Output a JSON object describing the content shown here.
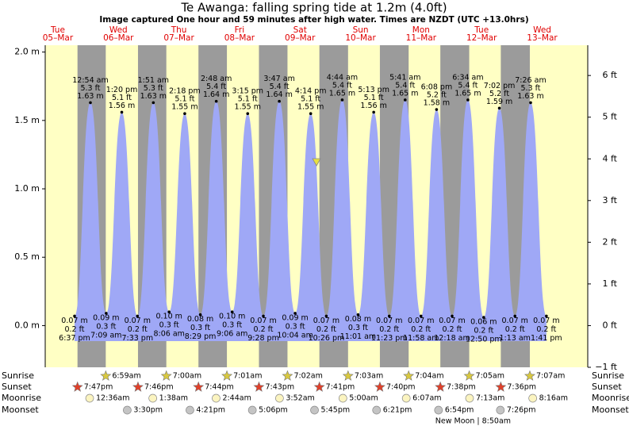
{
  "chart_data": {
    "type": "area",
    "title": "Te Awanga: falling  spring tide at 1.2m (4.0ft)",
    "subtitle": "Image captured One hour and 59 minutes after high water. Times are NZDT (UTC +13.0hrs)",
    "ylim": [
      -0.3048,
      2.05
    ],
    "yticks": [
      {
        "value": 0.0,
        "label": "0.0 m"
      },
      {
        "value": 0.5,
        "label": "0.5 m"
      },
      {
        "value": 1.0,
        "label": "1.0 m"
      },
      {
        "value": 1.5,
        "label": "1.5 m"
      },
      {
        "value": 2.0,
        "label": "2.0 m"
      }
    ],
    "y2lim": [
      -1,
      6.726
    ],
    "y2ticks": [
      {
        "value": -1,
        "label": "−1 ft"
      },
      {
        "value": 0,
        "label": "0 ft"
      },
      {
        "value": 1,
        "label": "1 ft"
      },
      {
        "value": 2,
        "label": "2 ft"
      },
      {
        "value": 3,
        "label": "3 ft"
      },
      {
        "value": 4,
        "label": "4 ft"
      },
      {
        "value": 5,
        "label": "5 ft"
      },
      {
        "value": 6,
        "label": "6 ft"
      }
    ],
    "color": "#9fa8f6",
    "rows": [
      "Sunrise",
      "Sunset",
      "Moonrise",
      "Moonset"
    ],
    "days": [
      {
        "weekday": "Tue",
        "date": "05–Mar",
        "sunset": "7:47pm",
        "tides": [
          {
            "time": "6:37 pm",
            "value": 0.07,
            "value_label": "0.07 m",
            "ft_label": "0.2 ft"
          }
        ]
      },
      {
        "weekday": "Wed",
        "date": "06–Mar",
        "sunrise": "6:59am",
        "sunset": "7:46pm",
        "moonrise": "12:36am",
        "moonset": "3:30pm",
        "tides": [
          {
            "time": "12:54 am",
            "value": 1.63,
            "value_label": "1.63 m",
            "ft_label": "5.3 ft"
          },
          {
            "time": "7:09 am",
            "value": 0.09,
            "value_label": "0.09 m",
            "ft_label": "0.3 ft"
          },
          {
            "time": "1:20 pm",
            "value": 1.56,
            "value_label": "1.56 m",
            "ft_label": "5.1 ft"
          },
          {
            "time": "7:33 pm",
            "value": 0.07,
            "value_label": "0.07 m",
            "ft_label": "0.2 ft"
          }
        ]
      },
      {
        "weekday": "Thu",
        "date": "07–Mar",
        "sunrise": "7:00am",
        "sunset": "7:44pm",
        "moonrise": "1:38am",
        "moonset": "4:21pm",
        "tides": [
          {
            "time": "1:51 am",
            "value": 1.63,
            "value_label": "1.63 m",
            "ft_label": "5.3 ft"
          },
          {
            "time": "8:06 am",
            "value": 0.1,
            "value_label": "0.10 m",
            "ft_label": "0.3 ft"
          },
          {
            "time": "2:18 pm",
            "value": 1.55,
            "value_label": "1.55 m",
            "ft_label": "5.1 ft"
          },
          {
            "time": "8:29 pm",
            "value": 0.08,
            "value_label": "0.08 m",
            "ft_label": "0.3 ft"
          }
        ]
      },
      {
        "weekday": "Fri",
        "date": "08–Mar",
        "sunrise": "7:01am",
        "sunset": "7:43pm",
        "moonrise": "2:44am",
        "moonset": "5:06pm",
        "tides": [
          {
            "time": "2:48 am",
            "value": 1.64,
            "value_label": "1.64 m",
            "ft_label": "5.4 ft"
          },
          {
            "time": "9:06 am",
            "value": 0.1,
            "value_label": "0.10 m",
            "ft_label": "0.3 ft"
          },
          {
            "time": "3:15 pm",
            "value": 1.55,
            "value_label": "1.55 m",
            "ft_label": "5.1 ft"
          },
          {
            "time": "9:28 pm",
            "value": 0.07,
            "value_label": "0.07 m",
            "ft_label": "0.2 ft"
          }
        ]
      },
      {
        "weekday": "Sat",
        "date": "09–Mar",
        "sunrise": "7:02am",
        "sunset": "7:41pm",
        "moonrise": "3:52am",
        "moonset": "5:45pm",
        "tides": [
          {
            "time": "3:47 am",
            "value": 1.64,
            "value_label": "1.64 m",
            "ft_label": "5.4 ft"
          },
          {
            "time": "10:04 am",
            "value": 0.09,
            "value_label": "0.09 m",
            "ft_label": "0.3 ft"
          },
          {
            "time": "4:14 pm",
            "value": 1.55,
            "value_label": "1.55 m",
            "ft_label": "5.1 ft"
          },
          {
            "time": "10:26 pm",
            "value": 0.07,
            "value_label": "0.07 m",
            "ft_label": "0.2 ft"
          }
        ]
      },
      {
        "weekday": "Sun",
        "date": "10–Mar",
        "sunrise": "7:03am",
        "sunset": "7:40pm",
        "moonrise": "5:00am",
        "moonset": "6:21pm",
        "tides": [
          {
            "time": "4:44 am",
            "value": 1.65,
            "value_label": "1.65 m",
            "ft_label": "5.4 ft"
          },
          {
            "time": "11:01 am",
            "value": 0.08,
            "value_label": "0.08 m",
            "ft_label": "0.3 ft"
          },
          {
            "time": "5:13 pm",
            "value": 1.56,
            "value_label": "1.56 m",
            "ft_label": "5.1 ft"
          },
          {
            "time": "11:23 pm",
            "value": 0.07,
            "value_label": "0.07 m",
            "ft_label": "0.2 ft"
          }
        ]
      },
      {
        "weekday": "Mon",
        "date": "11–Mar",
        "sunrise": "7:04am",
        "sunset": "7:38pm",
        "moonrise": "6:07am",
        "moonset": "6:54pm",
        "moon_phase": "New Moon | 8:50am",
        "tides": [
          {
            "time": "5:41 am",
            "value": 1.65,
            "value_label": "1.65 m",
            "ft_label": "5.4 ft"
          },
          {
            "time": "11:58 am",
            "value": 0.07,
            "value_label": "0.07 m",
            "ft_label": "0.2 ft"
          },
          {
            "time": "6:08 pm",
            "value": 1.58,
            "value_label": "1.58 m",
            "ft_label": "5.2 ft"
          }
        ]
      },
      {
        "weekday": "Tue",
        "date": "12–Mar",
        "sunrise": "7:05am",
        "sunset": "7:36pm",
        "moonrise": "7:13am",
        "moonset": "7:26pm",
        "tides": [
          {
            "time": "12:18 am",
            "value": 0.07,
            "value_label": "0.07 m",
            "ft_label": "0.2 ft"
          },
          {
            "time": "6:34 am",
            "value": 1.65,
            "value_label": "1.65 m",
            "ft_label": "5.4 ft"
          },
          {
            "time": "12:50 pm",
            "value": 0.06,
            "value_label": "0.06 m",
            "ft_label": "0.2 ft"
          },
          {
            "time": "7:02 pm",
            "value": 1.59,
            "value_label": "1.59 m",
            "ft_label": "5.2 ft"
          }
        ]
      },
      {
        "weekday": "Wed",
        "date": "13–Mar",
        "sunrise": "7:07am",
        "moonrise": "8:16am",
        "tides": [
          {
            "time": "1:13 am",
            "value": 0.07,
            "value_label": "0.07 m",
            "ft_label": "0.2 ft"
          },
          {
            "time": "7:26 am",
            "value": 1.63,
            "value_label": "1.63 m",
            "ft_label": "5.3 ft"
          },
          {
            "time": "1:41 pm",
            "value": 0.07,
            "value_label": "0.07 m",
            "ft_label": "0.2 ft"
          }
        ]
      }
    ]
  }
}
